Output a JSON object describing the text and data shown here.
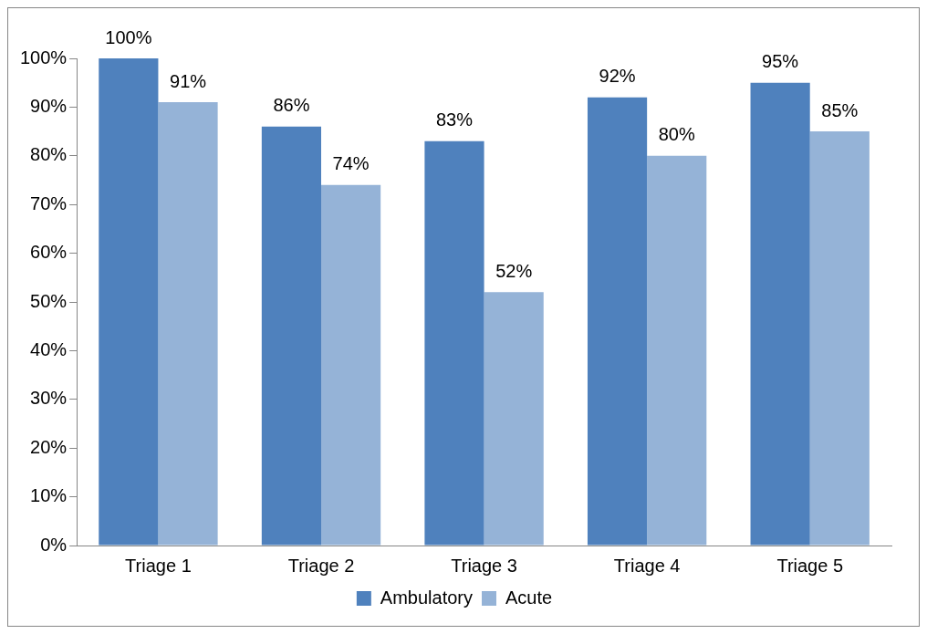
{
  "chart_data": {
    "type": "bar",
    "categories": [
      "Triage 1",
      "Triage 2",
      "Triage 3",
      "Triage 4",
      "Triage 5"
    ],
    "series": [
      {
        "name": "Ambulatory",
        "color": "#4f81bd",
        "values": [
          100,
          86,
          83,
          92,
          95
        ],
        "value_labels": [
          "100%",
          "86%",
          "83%",
          "92%",
          "95%"
        ]
      },
      {
        "name": "Acute",
        "color": "#95b3d7",
        "values": [
          91,
          74,
          52,
          80,
          85
        ],
        "value_labels": [
          "91%",
          "74%",
          "52%",
          "80%",
          "85%"
        ]
      }
    ],
    "ylim": [
      0,
      100
    ],
    "yticks": [
      {
        "value": 0,
        "label": "0%"
      },
      {
        "value": 10,
        "label": "10%"
      },
      {
        "value": 20,
        "label": "20%"
      },
      {
        "value": 30,
        "label": "30%"
      },
      {
        "value": 40,
        "label": "40%"
      },
      {
        "value": 50,
        "label": "50%"
      },
      {
        "value": 60,
        "label": "60%"
      },
      {
        "value": 70,
        "label": "70%"
      },
      {
        "value": 80,
        "label": "80%"
      },
      {
        "value": 90,
        "label": "90%"
      },
      {
        "value": 100,
        "label": "100%"
      }
    ],
    "grid": false,
    "legend": "bottom"
  }
}
